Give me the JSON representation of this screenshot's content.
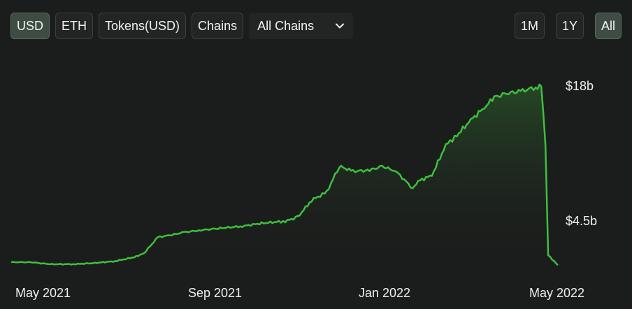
{
  "toolbar": {
    "usd_label": "USD",
    "eth_label": "ETH",
    "tokens_label": "Tokens(USD)",
    "chains_label": "Chains",
    "chain_select_value": "All Chains"
  },
  "range": {
    "m1_label": "1M",
    "y1_label": "1Y",
    "all_label": "All"
  },
  "colors": {
    "line": "#3fbf3f",
    "background": "#1b1d1c",
    "active_button": "#3e4c43"
  },
  "chart_data": {
    "type": "area",
    "x_ticks": [
      "May 2021",
      "Sep 2021",
      "Jan 2022",
      "May 2022"
    ],
    "y_ticks": [
      "$4.5b",
      "$18b"
    ],
    "y_tick_values": [
      4.5,
      18
    ],
    "ylim": [
      0,
      20.5
    ],
    "xlim": [
      "2021-04-17",
      "2022-05-17"
    ],
    "series": [
      {
        "x": [
          "2021-04-17",
          "2021-05-01",
          "2021-05-15",
          "2021-06-01",
          "2021-06-15",
          "2021-07-01",
          "2021-07-15",
          "2021-07-22",
          "2021-08-01",
          "2021-08-10",
          "2021-08-20",
          "2021-09-01",
          "2021-09-15",
          "2021-10-01",
          "2021-10-15",
          "2021-11-01",
          "2021-11-10",
          "2021-11-20",
          "2021-12-01",
          "2021-12-10",
          "2021-12-20",
          "2022-01-01",
          "2022-01-10",
          "2022-01-20",
          "2022-02-01",
          "2022-02-05",
          "2022-02-15",
          "2022-02-25",
          "2022-03-05",
          "2022-03-15",
          "2022-03-25",
          "2022-04-01",
          "2022-04-10",
          "2022-04-20",
          "2022-05-01",
          "2022-05-05",
          "2022-05-08",
          "2022-05-10",
          "2022-05-17"
        ],
        "values": [
          0.3,
          0.3,
          0.1,
          0.1,
          0.2,
          0.4,
          0.8,
          1.2,
          2.8,
          3.0,
          3.3,
          3.5,
          3.7,
          3.9,
          4.2,
          4.4,
          4.8,
          6.5,
          7.3,
          9.9,
          9.4,
          9.5,
          9.9,
          9.4,
          7.7,
          8.4,
          9.0,
          12.0,
          13.0,
          14.5,
          15.8,
          16.8,
          17.2,
          17.4,
          17.8,
          17.9,
          12.0,
          1.0,
          0.0
        ]
      }
    ]
  }
}
